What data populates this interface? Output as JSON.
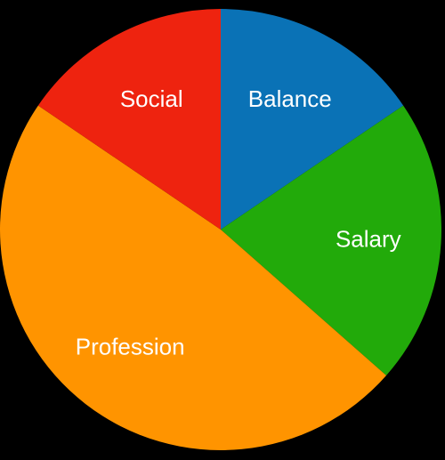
{
  "chart_data": {
    "type": "pie",
    "title": "",
    "start_angle_deg": 0,
    "direction": "clockwise",
    "slices": [
      {
        "label": "Balance",
        "value": 15.5,
        "color": "#0A72B6"
      },
      {
        "label": "Salary",
        "value": 21.0,
        "color": "#22AA0A"
      },
      {
        "label": "Profession",
        "value": 48.0,
        "color": "#FF9400"
      },
      {
        "label": "Social",
        "value": 15.5,
        "color": "#EE230F"
      }
    ]
  }
}
